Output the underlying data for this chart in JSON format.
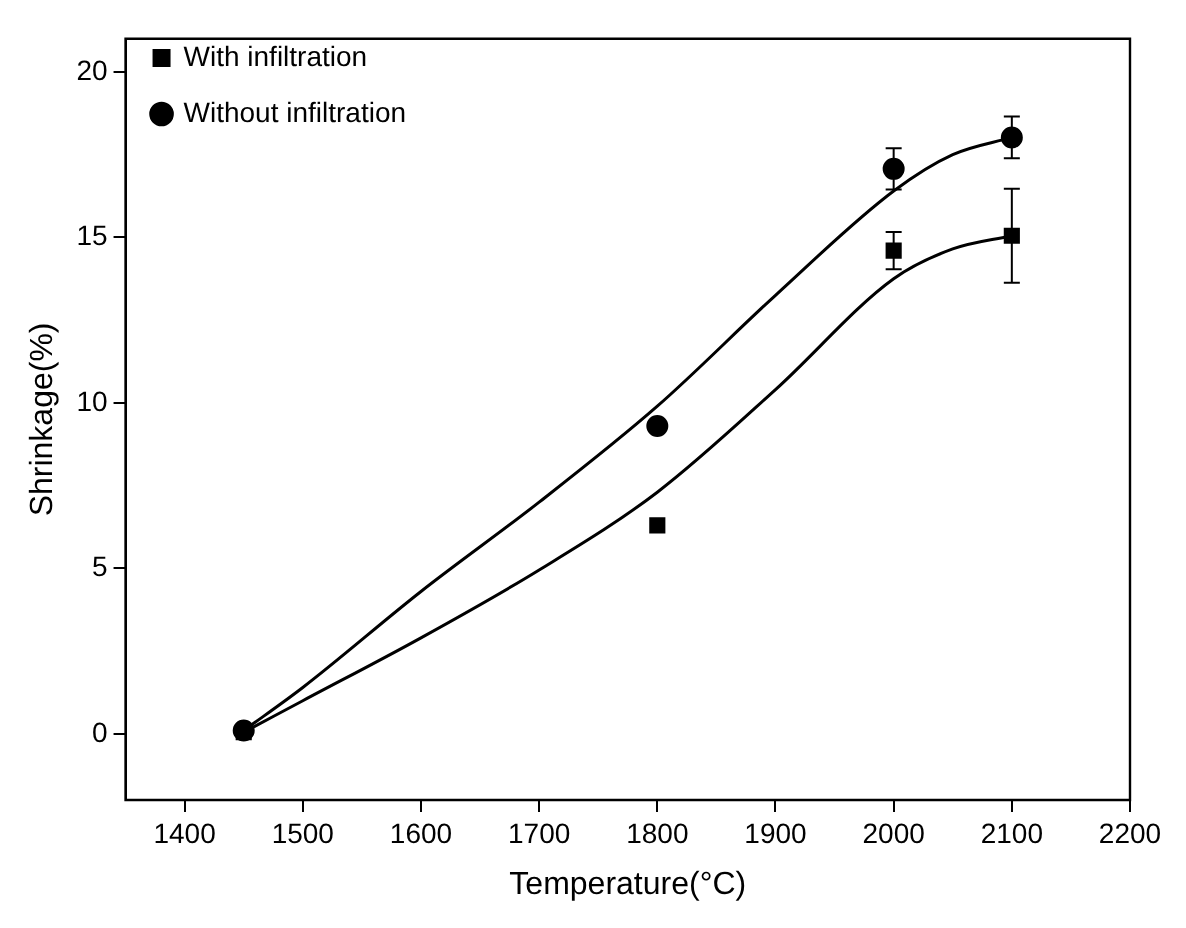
{
  "chart_data": {
    "type": "scatter",
    "xlabel": "Temperature(°C)",
    "ylabel": "Shrinkage(%)",
    "xlim": [
      1350,
      2200
    ],
    "xticks": [
      1400,
      1500,
      1600,
      1700,
      1800,
      1900,
      2000,
      2100,
      2200
    ],
    "ylim": [
      -2,
      21
    ],
    "yticks": [
      0,
      5,
      10,
      15,
      20
    ],
    "grid": false,
    "legend": "top left",
    "series": [
      {
        "name": "With infiltration",
        "type": "scatter",
        "marker": "square",
        "color": "#000000",
        "x": [
          1450,
          1800,
          2000,
          2100
        ],
        "values": [
          0.05,
          6.3,
          14.6,
          15.05
        ],
        "errors": [
          null,
          null,
          0.56,
          1.42
        ]
      },
      {
        "name": "Without infiltration",
        "type": "scatter",
        "marker": "circle",
        "color": "#000000",
        "x": [
          1450,
          1800,
          2000,
          2100
        ],
        "values": [
          0.1,
          9.3,
          17.07,
          18.02
        ],
        "errors": [
          null,
          null,
          0.62,
          0.63
        ]
      },
      {
        "type": "line",
        "marker": "none",
        "color": "#000000",
        "x": [
          1450,
          1500,
          1600,
          1700,
          1800,
          1900,
          2000,
          2050,
          2100
        ],
        "values": [
          0.05,
          1.0,
          2.9,
          4.95,
          7.3,
          10.4,
          13.75,
          14.65,
          15.05
        ]
      },
      {
        "type": "line",
        "marker": "none",
        "color": "#000000",
        "x": [
          1450,
          1500,
          1600,
          1700,
          1800,
          1900,
          2000,
          2050,
          2100
        ],
        "values": [
          0.1,
          1.4,
          4.3,
          7.0,
          9.9,
          13.25,
          16.4,
          17.5,
          18.02
        ]
      }
    ]
  }
}
